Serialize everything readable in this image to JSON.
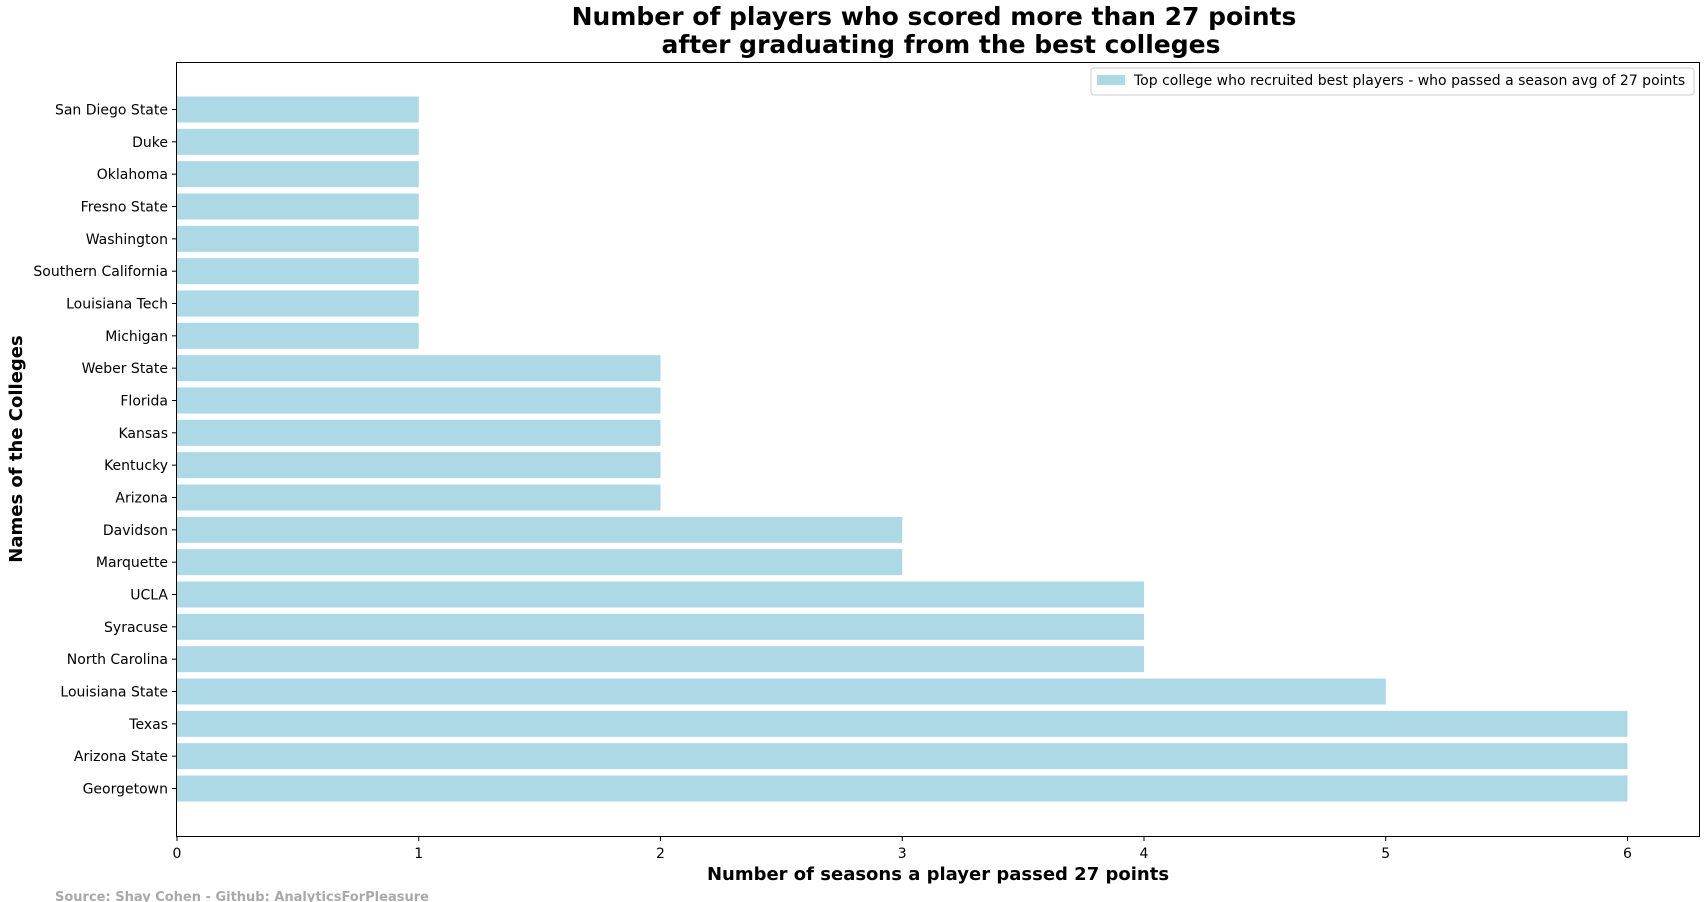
{
  "chart_data": {
    "type": "bar",
    "orientation": "horizontal",
    "title_lines": [
      "Number of players who scored more than 27 points",
      "after graduating from the best colleges"
    ],
    "xlabel": "Number of seasons a player passed 27 points",
    "ylabel": "Names of the Colleges",
    "xlim": [
      0,
      6.3
    ],
    "xticks": [
      0,
      1,
      2,
      3,
      4,
      5,
      6
    ],
    "categories": [
      "Georgetown",
      "Arizona State",
      "Texas",
      "Louisiana State",
      "North Carolina",
      "Syracuse",
      "UCLA",
      "Marquette",
      "Davidson",
      "Arizona",
      "Kentucky",
      "Kansas",
      "Florida",
      "Weber State",
      "Michigan",
      "Louisiana Tech",
      "Southern California",
      "Washington",
      "Fresno State",
      "Oklahoma",
      "Duke",
      "San Diego State"
    ],
    "series": [
      {
        "name": "Top college who recruited best players - who passed a season avg of 27 points",
        "values": [
          6,
          6,
          6,
          5,
          4,
          4,
          4,
          3,
          3,
          2,
          2,
          2,
          2,
          2,
          1,
          1,
          1,
          1,
          1,
          1,
          1,
          1
        ]
      }
    ],
    "bar_color": "#add8e6",
    "legend_position": "top-right",
    "grid": false
  },
  "source": "Source: Shay Cohen - Github: AnalyticsForPleasure",
  "colors": {
    "source_text": "#a9a9a9",
    "axis": "#000000"
  }
}
